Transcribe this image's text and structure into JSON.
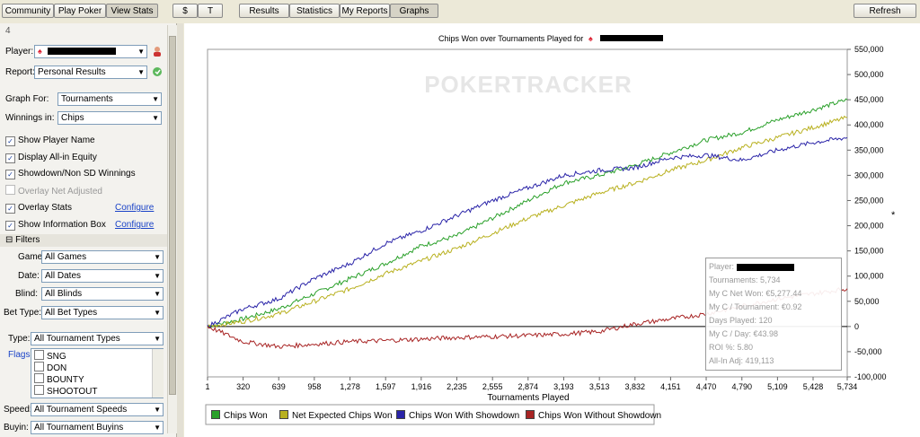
{
  "topbar": {
    "tabs": [
      "Community",
      "Play Poker",
      "View Stats"
    ],
    "currency": [
      "$",
      "T"
    ],
    "view_tabs": [
      "Results",
      "Statistics",
      "My Reports",
      "Graphs"
    ],
    "refresh": "Refresh"
  },
  "panel": {
    "header_number": "4",
    "player_label": "Player:",
    "report_label": "Report:",
    "report_value": "Personal Results",
    "graph_for_label": "Graph For:",
    "graph_for_value": "Tournaments",
    "winnings_label": "Winnings in:",
    "winnings_value": "Chips",
    "options": [
      {
        "label": "Show Player Name",
        "checked": true
      },
      {
        "label": "Display All-in Equity",
        "checked": true
      },
      {
        "label": "Showdown/Non SD Winnings",
        "checked": true
      },
      {
        "label": "Overlay Net Adjusted",
        "checked": false
      },
      {
        "label": "Overlay Stats",
        "checked": true
      },
      {
        "label": "Show Information Box",
        "checked": true
      }
    ],
    "configure": "Configure",
    "filters_title": "Filters",
    "filters": [
      {
        "label": "Game:",
        "value": "All Games"
      },
      {
        "label": "Date:",
        "value": "All Dates"
      },
      {
        "label": "Blind:",
        "value": "All Blinds"
      },
      {
        "label": "Bet Type:",
        "value": "All Bet Types"
      }
    ],
    "type_label": "Type:",
    "type_value": "All Tournament Types",
    "flags_label": "Flags:",
    "flags": [
      "SNG",
      "DON",
      "BOUNTY",
      "SHOOTOUT"
    ],
    "speed_label": "Speed:",
    "speed_value": "All Tournament Speeds",
    "buyin_label": "Buyin:",
    "buyin_value": "All Tournament Buyins"
  },
  "chart": {
    "title": "Chips Won over Tournaments Played for",
    "watermark": "POKERTRACKER",
    "xlabel": "Tournaments Played",
    "asterisk": "*"
  },
  "infobox": {
    "lines": [
      "Player:",
      "Tournaments: 5,734",
      "My C Net Won: €5,277.44",
      "My C / Tournament: €0.92",
      "Days Played: 120",
      "My C / Day: €43.98",
      "ROI %: 5.80",
      "All-In Adj: 419,113"
    ]
  },
  "chart_data": {
    "type": "line",
    "title": "Chips Won over Tournaments Played for",
    "xlabel": "Tournaments Played",
    "ylabel": "",
    "xlim": [
      1,
      5734
    ],
    "ylim": [
      -100000,
      550000
    ],
    "x_ticks": [
      "1",
      "320",
      "639",
      "958",
      "1,278",
      "1,597",
      "1,916",
      "2,235",
      "2,555",
      "2,874",
      "3,193",
      "3,513",
      "3,832",
      "4,151",
      "4,470",
      "4,790",
      "5,109",
      "5,428",
      "5,734"
    ],
    "y_ticks": [
      "550,000",
      "500,000",
      "450,000",
      "400,000",
      "350,000",
      "300,000",
      "250,000",
      "200,000",
      "150,000",
      "100,000",
      "50,000",
      "0",
      "-50,000",
      "-100,000"
    ],
    "x": [
      1,
      320,
      639,
      958,
      1278,
      1597,
      1916,
      2235,
      2555,
      2874,
      3193,
      3513,
      3832,
      4151,
      4470,
      4790,
      5109,
      5428,
      5734
    ],
    "series": [
      {
        "name": "Chips Won",
        "color": "#2aa02a",
        "values": [
          0,
          15000,
          35000,
          65000,
          95000,
          125000,
          160000,
          180000,
          215000,
          250000,
          285000,
          300000,
          320000,
          345000,
          370000,
          385000,
          410000,
          430000,
          450000
        ]
      },
      {
        "name": "Net Expected Chips Won",
        "color": "#b8b01e",
        "values": [
          0,
          10000,
          25000,
          50000,
          75000,
          105000,
          130000,
          155000,
          185000,
          215000,
          240000,
          265000,
          285000,
          310000,
          330000,
          355000,
          375000,
          395000,
          415000
        ]
      },
      {
        "name": "Chips Won With Showdown",
        "color": "#2a24a8",
        "values": [
          0,
          35000,
          55000,
          95000,
          125000,
          165000,
          190000,
          220000,
          250000,
          275000,
          300000,
          310000,
          315000,
          335000,
          340000,
          330000,
          350000,
          365000,
          375000
        ]
      },
      {
        "name": "Chips Won Without Showdown",
        "color": "#a82424",
        "values": [
          0,
          -30000,
          -40000,
          -35000,
          -30000,
          -28000,
          -25000,
          -22000,
          -20000,
          -18000,
          -15000,
          -10000,
          5000,
          15000,
          25000,
          40000,
          55000,
          65000,
          75000
        ]
      }
    ],
    "grid": false,
    "legend": "bottom"
  }
}
